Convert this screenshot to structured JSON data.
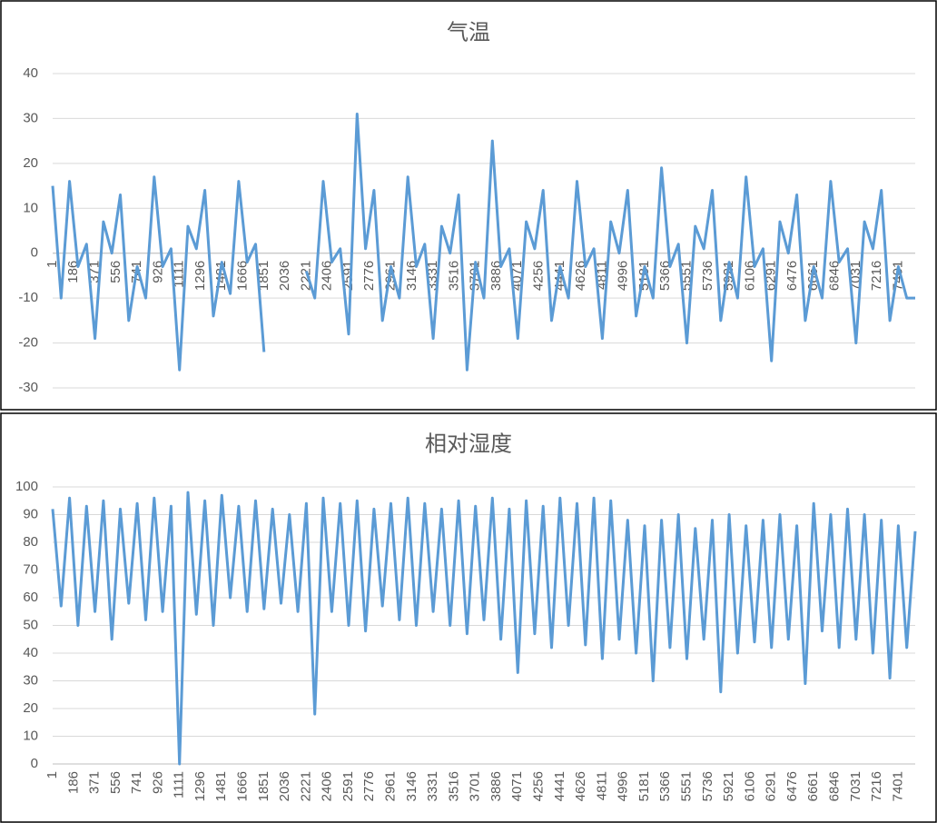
{
  "chart_data": [
    {
      "type": "line",
      "title": "气温",
      "color": "#5b9bd5",
      "grid": true,
      "x": [
        1,
        75,
        149,
        223,
        297,
        371,
        445,
        519,
        593,
        667,
        741,
        815,
        889,
        963,
        1037,
        1111,
        1185,
        1259,
        1333,
        1407,
        1481,
        1555,
        1629,
        1703,
        1777,
        1851,
        1925,
        1999,
        2073,
        2147,
        2221,
        2295,
        2369,
        2443,
        2517,
        2591,
        2665,
        2739,
        2813,
        2887,
        2961,
        3035,
        3109,
        3183,
        3257,
        3331,
        3405,
        3479,
        3553,
        3627,
        3701,
        3775,
        3849,
        3923,
        3997,
        4071,
        4145,
        4219,
        4293,
        4367,
        4441,
        4515,
        4589,
        4663,
        4737,
        4811,
        4885,
        4959,
        5033,
        5107,
        5181,
        5255,
        5329,
        5403,
        5477,
        5551,
        5625,
        5699,
        5773,
        5847,
        5921,
        5995,
        6069,
        6143,
        6217,
        6291,
        6365,
        6439,
        6513,
        6587,
        6661,
        6735,
        6809,
        6883,
        6957,
        7031,
        7105,
        7179,
        7253,
        7327,
        7401,
        7475,
        7549
      ],
      "values": [
        15,
        -10,
        16,
        -3,
        2,
        -19,
        7,
        0,
        13,
        -15,
        -3,
        -10,
        17,
        -3,
        1,
        -26,
        6,
        1,
        14,
        -14,
        -2,
        -9,
        16,
        -2,
        2,
        -22,
        null,
        null,
        null,
        null,
        -4,
        -10,
        16,
        -2,
        1,
        -18,
        31,
        1,
        14,
        -15,
        -3,
        -10,
        17,
        -3,
        2,
        -19,
        6,
        0,
        13,
        -26,
        -2,
        -10,
        25,
        -3,
        1,
        -19,
        7,
        1,
        14,
        -15,
        -3,
        -10,
        16,
        -3,
        1,
        -19,
        7,
        0,
        14,
        -14,
        -3,
        -10,
        19,
        -3,
        2,
        -20,
        6,
        1,
        14,
        -15,
        -2,
        -10,
        17,
        -3,
        1,
        -24,
        7,
        0,
        13,
        -15,
        -3,
        -10,
        16,
        -2,
        1,
        -20,
        7,
        1,
        14,
        -15,
        -3,
        -10,
        -10
      ],
      "xlim": [
        1,
        7549
      ],
      "xticks": [
        1,
        186,
        371,
        556,
        741,
        926,
        1111,
        1296,
        1481,
        1666,
        1851,
        2036,
        2221,
        2406,
        2591,
        2776,
        2961,
        3146,
        3331,
        3516,
        3701,
        3886,
        4071,
        4256,
        4441,
        4626,
        4811,
        4996,
        5181,
        5366,
        5551,
        5736,
        5921,
        6106,
        6291,
        6476,
        6661,
        6846,
        7031,
        7216,
        7401
      ],
      "ylim": [
        -30,
        40
      ],
      "yticks": [
        -30,
        -20,
        -10,
        0,
        10,
        20,
        30,
        40
      ]
    },
    {
      "type": "line",
      "title": "相对湿度",
      "color": "#5b9bd5",
      "grid": true,
      "x": [
        1,
        75,
        149,
        223,
        297,
        371,
        445,
        519,
        593,
        667,
        741,
        815,
        889,
        963,
        1037,
        1111,
        1185,
        1259,
        1333,
        1407,
        1481,
        1555,
        1629,
        1703,
        1777,
        1851,
        1925,
        1999,
        2073,
        2147,
        2221,
        2295,
        2369,
        2443,
        2517,
        2591,
        2665,
        2739,
        2813,
        2887,
        2961,
        3035,
        3109,
        3183,
        3257,
        3331,
        3405,
        3479,
        3553,
        3627,
        3701,
        3775,
        3849,
        3923,
        3997,
        4071,
        4145,
        4219,
        4293,
        4367,
        4441,
        4515,
        4589,
        4663,
        4737,
        4811,
        4885,
        4959,
        5033,
        5107,
        5181,
        5255,
        5329,
        5403,
        5477,
        5551,
        5625,
        5699,
        5773,
        5847,
        5921,
        5995,
        6069,
        6143,
        6217,
        6291,
        6365,
        6439,
        6513,
        6587,
        6661,
        6735,
        6809,
        6883,
        6957,
        7031,
        7105,
        7179,
        7253,
        7327,
        7401,
        7475,
        7549
      ],
      "values": [
        92,
        57,
        96,
        50,
        93,
        55,
        95,
        45,
        92,
        58,
        94,
        52,
        96,
        55,
        93,
        0,
        98,
        54,
        95,
        50,
        97,
        60,
        93,
        55,
        95,
        56,
        92,
        58,
        90,
        55,
        94,
        18,
        96,
        55,
        94,
        50,
        95,
        48,
        92,
        57,
        94,
        52,
        96,
        50,
        94,
        55,
        92,
        50,
        95,
        47,
        93,
        52,
        96,
        45,
        92,
        33,
        95,
        47,
        93,
        42,
        96,
        50,
        94,
        43,
        96,
        38,
        95,
        45,
        88,
        40,
        86,
        30,
        88,
        42,
        90,
        38,
        85,
        45,
        88,
        26,
        90,
        40,
        86,
        44,
        88,
        42,
        90,
        45,
        86,
        29,
        94,
        48,
        90,
        42,
        92,
        45,
        90,
        40,
        88,
        31,
        86,
        42,
        84
      ],
      "xlim": [
        1,
        7549
      ],
      "xticks": [
        1,
        186,
        371,
        556,
        741,
        926,
        1111,
        1296,
        1481,
        1666,
        1851,
        2036,
        2221,
        2406,
        2591,
        2776,
        2961,
        3146,
        3331,
        3516,
        3701,
        3886,
        4071,
        4256,
        4441,
        4626,
        4811,
        4996,
        5181,
        5366,
        5551,
        5736,
        5921,
        6106,
        6291,
        6476,
        6661,
        6846,
        7031,
        7216,
        7401
      ],
      "ylim": [
        0,
        100
      ],
      "yticks": [
        0,
        10,
        20,
        30,
        40,
        50,
        60,
        70,
        80,
        90,
        100
      ]
    }
  ]
}
